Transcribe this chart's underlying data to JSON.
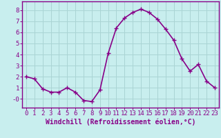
{
  "x": [
    0,
    1,
    2,
    3,
    4,
    5,
    6,
    7,
    8,
    9,
    10,
    11,
    12,
    13,
    14,
    15,
    16,
    17,
    18,
    19,
    20,
    21,
    22,
    23
  ],
  "y": [
    2.0,
    1.8,
    0.9,
    0.6,
    0.6,
    1.0,
    0.6,
    -0.15,
    -0.25,
    0.8,
    4.1,
    6.4,
    7.3,
    7.8,
    8.1,
    7.8,
    7.2,
    6.3,
    5.3,
    3.6,
    2.5,
    3.1,
    1.6,
    1.0
  ],
  "line_color": "#880088",
  "marker": "+",
  "marker_size": 4,
  "linewidth": 1.2,
  "xlabel": "Windchill (Refroidissement éolien,°C)",
  "xlabel_fontsize": 7,
  "ylim": [
    -0.8,
    8.8
  ],
  "xlim": [
    -0.5,
    23.5
  ],
  "yticks": [
    0,
    1,
    2,
    3,
    4,
    5,
    6,
    7,
    8
  ],
  "ytick_labels": [
    "-0",
    "1",
    "2",
    "3",
    "4",
    "5",
    "6",
    "7",
    "8"
  ],
  "xticks": [
    0,
    1,
    2,
    3,
    4,
    5,
    6,
    7,
    8,
    9,
    10,
    11,
    12,
    13,
    14,
    15,
    16,
    17,
    18,
    19,
    20,
    21,
    22,
    23
  ],
  "grid_color": "#aad4d4",
  "bg_color": "#c8eeee",
  "tick_fontsize": 6.5,
  "spine_color": "#880088"
}
